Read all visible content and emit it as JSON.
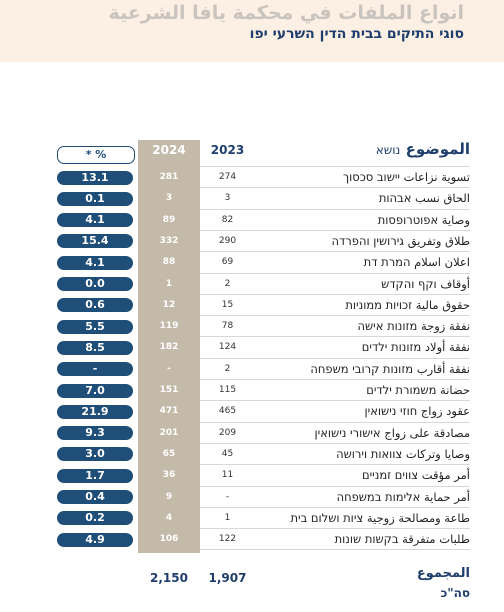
{
  "header": {
    "title": "انواع الملفات في محكمة يافا الشرعية",
    "subtitle": "סוגי התיקים בבית הדין השרעי יפו"
  },
  "table": {
    "columns": {
      "percent": "* %",
      "y2024": "2024",
      "y2023": "2023",
      "subject_ar": "الموضوع",
      "subject_he": "נושא"
    },
    "rows": [
      {
        "subject": "تسوية نزاعات יישוב סכסוך",
        "y2023": "274",
        "y2024": "281",
        "percent": "13.1"
      },
      {
        "subject": "الحاق نسب אבהות",
        "y2023": "3",
        "y2024": "3",
        "percent": "0.1"
      },
      {
        "subject": "وصاية אפוטרופסות",
        "y2023": "82",
        "y2024": "89",
        "percent": "4.1"
      },
      {
        "subject": "طلاق وتفريق גירושין והפרדה",
        "y2023": "290",
        "y2024": "332",
        "percent": "15.4"
      },
      {
        "subject": "اعلان اسلام המרת דת",
        "y2023": "69",
        "y2024": "88",
        "percent": "4.1"
      },
      {
        "subject": "أوقاف וקף והקדש",
        "y2023": "2",
        "y2024": "1",
        "percent": "0.0"
      },
      {
        "subject": "حقوق مالية זכויות ממוניות",
        "y2023": "15",
        "y2024": "12",
        "percent": "0.6"
      },
      {
        "subject": "نفقة زوجة מזונות אישה",
        "y2023": "78",
        "y2024": "119",
        "percent": "5.5"
      },
      {
        "subject": "نفقة أولاد מזונות ילדים",
        "y2023": "124",
        "y2024": "182",
        "percent": "8.5"
      },
      {
        "subject": "نفقة أقارب מזונות קרובי משפחה",
        "y2023": "2",
        "y2024": "-",
        "percent": "-"
      },
      {
        "subject": "حضانة משמורת ילדים",
        "y2023": "115",
        "y2024": "151",
        "percent": "7.0"
      },
      {
        "subject": "عقود زواج חוזי נישואין",
        "y2023": "465",
        "y2024": "471",
        "percent": "21.9"
      },
      {
        "subject": "مصادقة على زواج אישורי נישואין",
        "y2023": "209",
        "y2024": "201",
        "percent": "9.3"
      },
      {
        "subject": "وصايا وتركات צוואות וירושה",
        "y2023": "45",
        "y2024": "65",
        "percent": "3.0"
      },
      {
        "subject": "أمر مؤقت צווים זמניים",
        "y2023": "11",
        "y2024": "36",
        "percent": "1.7"
      },
      {
        "subject": "أمر حماية אלימות במשפחה",
        "y2023": "-",
        "y2024": "9",
        "percent": "0.4"
      },
      {
        "subject": "طاعة ومصالحة زوجية ציות ושלום בית",
        "y2023": "1",
        "y2024": "4",
        "percent": "0.2"
      },
      {
        "subject": "طلبات متفرقة בקשות שונות",
        "y2023": "122",
        "y2024": "106",
        "percent": "4.9"
      }
    ],
    "total": {
      "label_ar": "المجموع",
      "label_he": "סה\"כ",
      "y2024": "2,150",
      "y2023": "1,907"
    }
  }
}
